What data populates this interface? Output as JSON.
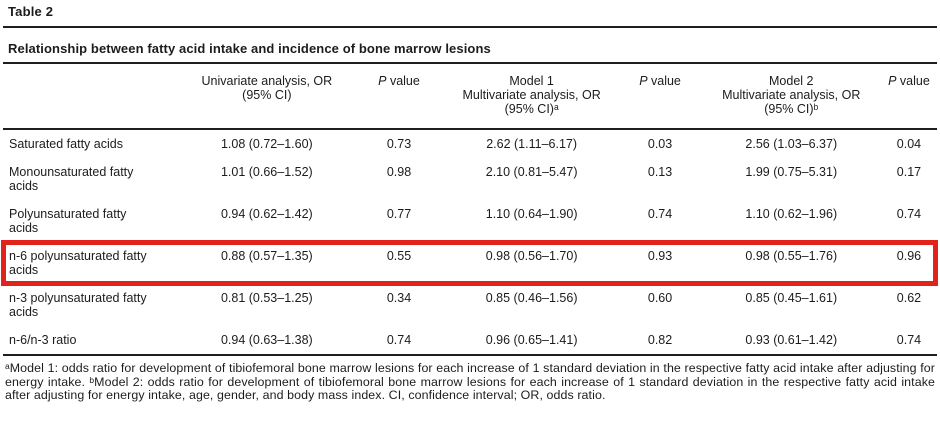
{
  "page": {
    "table_number": "Table 2",
    "caption": "Relationship between fatty acid intake and incidence of bone marrow lesions"
  },
  "table": {
    "columns": [
      {
        "id": "fatty-acid",
        "label": ""
      },
      {
        "id": "univariate-or",
        "label": "Univariate analysis, OR\n(95% CI)"
      },
      {
        "id": "p-value-univariate",
        "italic_prefix": "P",
        "label": " value"
      },
      {
        "id": "model-1-or",
        "label": "Model 1\nMultivariate analysis, OR\n(95% CI)ᵃ"
      },
      {
        "id": "p-value-model-1",
        "italic_prefix": "P",
        "label": " value"
      },
      {
        "id": "model-2-or",
        "label": "Model 2\nMultivariate analysis, OR\n(95% CI)ᵇ"
      },
      {
        "id": "p-value-model-2",
        "italic_prefix": "P",
        "label": " value"
      }
    ],
    "rows": [
      {
        "highlighted": false,
        "cells": [
          "Saturated fatty acids",
          "1.08 (0.72–1.60)",
          "0.73",
          "2.62 (1.11–6.17)",
          "0.03",
          "2.56 (1.03–6.37)",
          "0.04"
        ]
      },
      {
        "highlighted": false,
        "cells": [
          "Monounsaturated fatty acids",
          "1.01 (0.66–1.52)",
          "0.98",
          "2.10 (0.81–5.47)",
          "0.13",
          "1.99 (0.75–5.31)",
          "0.17"
        ]
      },
      {
        "highlighted": false,
        "cells": [
          "Polyunsaturated fatty acids",
          "0.94 (0.62–1.42)",
          "0.77",
          "1.10 (0.64–1.90)",
          "0.74",
          "1.10 (0.62–1.96)",
          "0.74"
        ]
      },
      {
        "highlighted": true,
        "cells": [
          "n-6 polyunsaturated fatty acids",
          "0.88 (0.57–1.35)",
          "0.55",
          "0.98 (0.56–1.70)",
          "0.93",
          "0.98 (0.55–1.76)",
          "0.96"
        ]
      },
      {
        "highlighted": false,
        "cells": [
          "n-3 polyunsaturated fatty acids",
          "0.81 (0.53–1.25)",
          "0.34",
          "0.85 (0.46–1.56)",
          "0.60",
          "0.85 (0.45–1.61)",
          "0.62"
        ]
      },
      {
        "highlighted": false,
        "cells": [
          "n-6/n-3 ratio",
          "0.94 (0.63–1.38)",
          "0.74",
          "0.96 (0.65–1.41)",
          "0.82",
          "0.93 (0.61–1.42)",
          "0.74"
        ]
      }
    ]
  },
  "footnote": {
    "text": "ᵃModel 1: odds ratio for development of tibiofemoral bone marrow lesions for each increase of 1 standard deviation in the respective fatty acid intake after adjusting for energy intake. ᵇModel 2: odds ratio for development of tibiofemoral bone marrow lesions for each increase of 1 standard deviation in the respective fatty acid intake after adjusting for energy intake, age, gender, and body mass index. CI, confidence interval; OR, odds ratio."
  },
  "annotation": {
    "highlight_color": "#e2231c"
  }
}
